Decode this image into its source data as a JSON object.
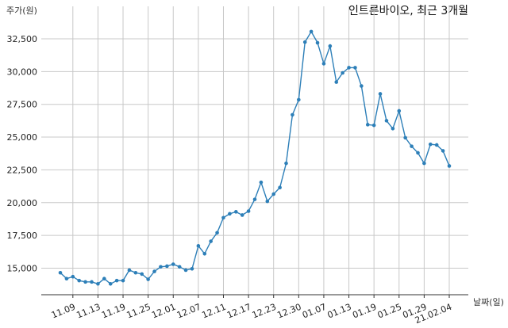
{
  "chart_data": {
    "type": "line",
    "title": "인트론바이오, 최근 3개월",
    "ylabel": "주가(원)",
    "xlabel": "날짜(일)",
    "ylim": [
      13000,
      33500
    ],
    "grid": true,
    "y_ticks": [
      15000,
      17500,
      20000,
      22500,
      25000,
      27500,
      30000,
      32500
    ],
    "y_tick_labels": [
      "15,000",
      "17,500",
      "20,000",
      "22,500",
      "25,000",
      "27,500",
      "30,000",
      "32,500"
    ],
    "x_tick_labels": [
      "11.09",
      "11.13",
      "11.19",
      "11.25",
      "12.01",
      "12.07",
      "12.11",
      "12.17",
      "12.23",
      "12.30",
      "01.07",
      "01.13",
      "01.19",
      "01.25",
      "01.29",
      "21.02.04"
    ],
    "x_tick_index": [
      2,
      6,
      10,
      14,
      18,
      22,
      26,
      30,
      34,
      38,
      42,
      46,
      50,
      54,
      58,
      62
    ],
    "color": "#2d7fb8",
    "series": [
      {
        "values": [
          14650,
          14200,
          14350,
          14050,
          13950,
          13950,
          13800,
          14200,
          13800,
          14050,
          14050,
          14850,
          14650,
          14550,
          14150,
          14750,
          15100,
          15150,
          15300,
          15100,
          14850,
          14950,
          16700,
          16100,
          17050,
          17700,
          18850,
          19150,
          19300,
          19050,
          19350,
          20250,
          21550,
          20100,
          20650,
          21150,
          23000,
          26700,
          27850,
          32250,
          33050,
          32200,
          30600,
          31950,
          29200,
          29900,
          30300,
          30300,
          28900,
          25950,
          25900,
          28300,
          26250,
          25650,
          27000,
          24950,
          24300,
          23800,
          23000,
          24450,
          24400,
          23950,
          22800
        ]
      }
    ]
  }
}
